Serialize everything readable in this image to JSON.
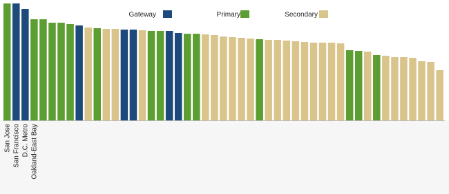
{
  "chart_data": {
    "type": "bar",
    "categories": [
      "San Jose",
      "San Francisco",
      "D.C. Metro",
      "Oakland-East Bay",
      null,
      null,
      null,
      null,
      null,
      null,
      null,
      null,
      null,
      null,
      null,
      null,
      null,
      null,
      null,
      null,
      null,
      null,
      null,
      null,
      null,
      null,
      null,
      null,
      null,
      null,
      null,
      null,
      null,
      null,
      null,
      null,
      null,
      null,
      null,
      null,
      null,
      null,
      null,
      null,
      null,
      null,
      null,
      null,
      null
    ],
    "series": [
      {
        "name": "Gateway",
        "color": "#1d4a7a",
        "values": [
          null,
          170,
          162,
          null,
          null,
          null,
          null,
          null,
          138,
          null,
          null,
          null,
          null,
          132,
          132,
          null,
          null,
          null,
          130,
          127,
          null,
          null,
          null,
          null,
          null,
          null,
          null,
          null,
          null,
          null,
          null,
          null,
          null,
          null,
          null,
          null,
          null,
          null,
          null,
          null,
          null,
          null,
          null,
          null,
          null,
          null,
          null,
          null,
          null
        ]
      },
      {
        "name": "Primary",
        "color": "#5c9e31",
        "values": [
          170,
          null,
          null,
          147,
          147,
          142,
          142,
          140,
          null,
          null,
          134,
          null,
          null,
          null,
          null,
          null,
          130,
          130,
          null,
          null,
          126,
          126,
          null,
          null,
          null,
          null,
          null,
          null,
          118,
          null,
          null,
          null,
          null,
          null,
          null,
          null,
          null,
          null,
          102,
          101,
          null,
          95,
          null,
          null,
          null,
          null,
          null,
          null,
          null
        ]
      },
      {
        "name": "Secondary",
        "color": "#d9c58c",
        "values": [
          null,
          null,
          null,
          null,
          null,
          null,
          null,
          null,
          null,
          135,
          null,
          133,
          133,
          null,
          null,
          131,
          null,
          null,
          null,
          null,
          null,
          null,
          125,
          124,
          122,
          121,
          120,
          119,
          null,
          117,
          117,
          116,
          115,
          114,
          113,
          113,
          113,
          112,
          null,
          null,
          100,
          null,
          94,
          92,
          92,
          91,
          86,
          85,
          73
        ]
      }
    ],
    "ylim": [
      0,
      170
    ]
  }
}
